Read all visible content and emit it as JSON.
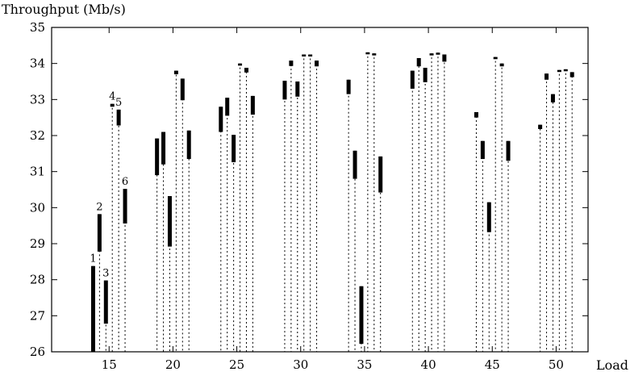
{
  "chart_data": {
    "type": "bar",
    "subtype": "floating-range",
    "ylabel": "Throughput (Mb/s)",
    "xlabel": "Load",
    "xlim": [
      10.5,
      52.5
    ],
    "ylim": [
      26,
      35
    ],
    "x_ticks": [
      15,
      20,
      25,
      30,
      35,
      40,
      45,
      50
    ],
    "y_ticks": [
      26,
      27,
      28,
      29,
      30,
      31,
      32,
      33,
      34,
      35
    ],
    "grid": false,
    "bar_labels": [
      "1",
      "2",
      "3",
      "4",
      "5",
      "6"
    ],
    "groups": [
      {
        "load": 15,
        "ranges": [
          [
            26.0,
            28.38
          ],
          [
            28.78,
            29.82
          ],
          [
            26.78,
            27.98
          ],
          [
            32.8,
            32.88
          ],
          [
            32.28,
            32.72
          ],
          [
            29.56,
            30.52
          ]
        ]
      },
      {
        "load": 20,
        "ranges": [
          [
            30.9,
            31.92
          ],
          [
            31.2,
            32.1
          ],
          [
            28.92,
            30.32
          ],
          [
            33.7,
            33.8
          ],
          [
            32.98,
            33.58
          ],
          [
            31.35,
            32.14
          ]
        ]
      },
      {
        "load": 25,
        "ranges": [
          [
            32.1,
            32.8
          ],
          [
            32.55,
            33.05
          ],
          [
            31.26,
            32.02
          ],
          [
            33.94,
            34.0
          ],
          [
            33.75,
            33.88
          ],
          [
            32.58,
            33.1
          ]
        ]
      },
      {
        "load": 30,
        "ranges": [
          [
            33.0,
            33.52
          ],
          [
            33.93,
            34.08
          ],
          [
            33.08,
            33.5
          ],
          [
            34.22,
            34.25
          ],
          [
            34.22,
            34.25
          ],
          [
            33.92,
            34.08
          ]
        ]
      },
      {
        "load": 35,
        "ranges": [
          [
            33.15,
            33.55
          ],
          [
            30.8,
            31.58
          ],
          [
            26.22,
            27.82
          ],
          [
            34.28,
            34.31
          ],
          [
            34.25,
            34.28
          ],
          [
            30.42,
            31.42
          ]
        ]
      },
      {
        "load": 40,
        "ranges": [
          [
            33.3,
            33.8
          ],
          [
            33.92,
            34.15
          ],
          [
            33.48,
            33.88
          ],
          [
            34.24,
            34.28
          ],
          [
            34.26,
            34.3
          ],
          [
            34.05,
            34.25
          ]
        ]
      },
      {
        "load": 45,
        "ranges": [
          [
            32.5,
            32.65
          ],
          [
            31.35,
            31.85
          ],
          [
            29.32,
            30.15
          ],
          [
            34.12,
            34.18
          ],
          [
            33.92,
            34.0
          ],
          [
            31.3,
            31.85
          ]
        ]
      },
      {
        "load": 50,
        "ranges": [
          [
            32.18,
            32.3
          ],
          [
            33.55,
            33.72
          ],
          [
            32.92,
            33.15
          ],
          [
            33.78,
            33.82
          ],
          [
            33.8,
            33.84
          ],
          [
            33.62,
            33.76
          ]
        ]
      }
    ]
  }
}
